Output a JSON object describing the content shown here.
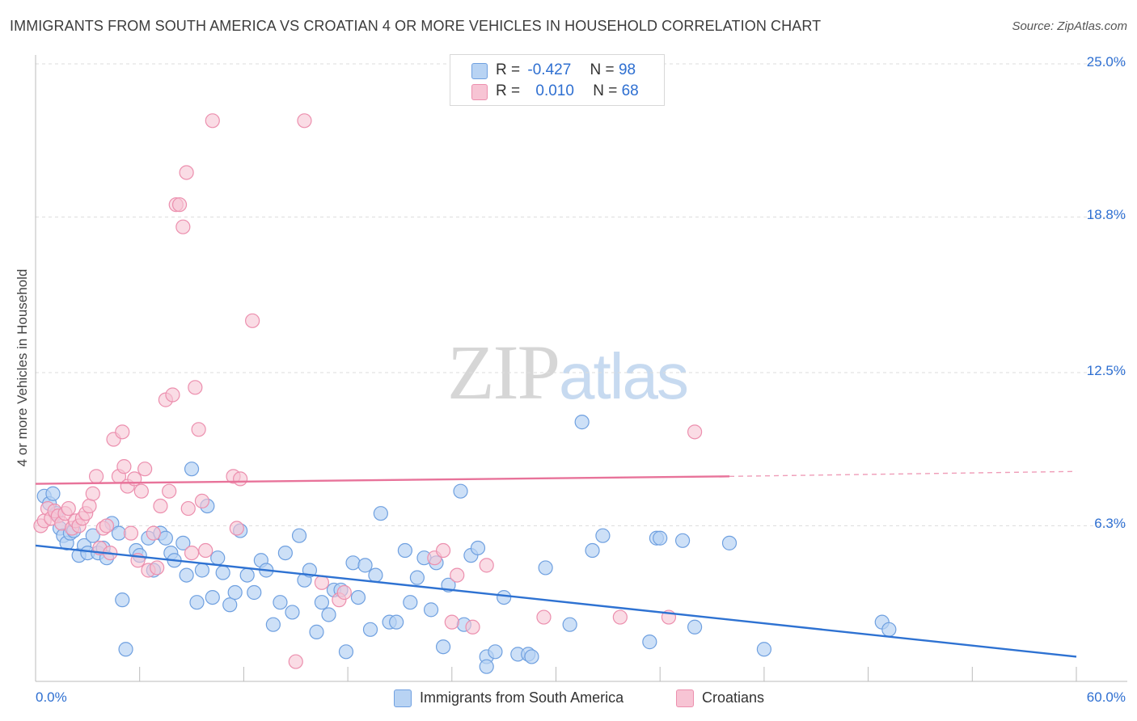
{
  "header": {
    "title": "IMMIGRANTS FROM SOUTH AMERICA VS CROATIAN 4 OR MORE VEHICLES IN HOUSEHOLD CORRELATION CHART",
    "source": "Source: ZipAtlas.com"
  },
  "legend_top": {
    "row1": {
      "r_label": "R =",
      "r_value": "-0.427",
      "n_label": "N =",
      "n_value": "98"
    },
    "row2": {
      "r_label": "R =",
      "r_value": "0.010",
      "n_label": "N =",
      "n_value": "68"
    }
  },
  "legend_bottom": {
    "blue": "Immigrants from South America",
    "pink": "Croatians"
  },
  "watermark": {
    "zip": "ZIP",
    "atlas": "atlas"
  },
  "colors": {
    "blue_fill": "#b8d3f3",
    "blue_stroke": "#6fa0e0",
    "blue_line": "#2e72d2",
    "pink_fill": "#f7c4d4",
    "pink_stroke": "#ec8fae",
    "pink_line": "#e8739a",
    "axis_text": "#2e6fd1",
    "grid": "#dddddd"
  },
  "chart_data": {
    "type": "scatter",
    "title": "IMMIGRANTS FROM SOUTH AMERICA VS CROATIAN 4 OR MORE VEHICLES IN HOUSEHOLD CORRELATION CHART",
    "xlabel": "",
    "ylabel": "4 or more Vehicles in Household",
    "xlim": [
      0,
      60
    ],
    "ylim": [
      0,
      25
    ],
    "x_tick_labels": [
      "0.0%",
      "60.0%"
    ],
    "y_ticks": [
      6.3,
      12.5,
      18.8,
      25.0
    ],
    "y_tick_labels": [
      "6.3%",
      "12.5%",
      "18.8%",
      "25.0%"
    ],
    "grid": "horizontal dashed",
    "legend_placement": "bottom",
    "series": [
      {
        "name": "Immigrants from South America",
        "color": "#b8d3f3",
        "r": -0.427,
        "n": 98,
        "trend": {
          "x": [
            0,
            60
          ],
          "y": [
            5.5,
            1.0
          ]
        },
        "points": [
          [
            0.5,
            7.5
          ],
          [
            0.8,
            7.2
          ],
          [
            1.0,
            7.6
          ],
          [
            1.2,
            6.8
          ],
          [
            1.4,
            6.2
          ],
          [
            1.6,
            5.9
          ],
          [
            1.8,
            5.6
          ],
          [
            2.0,
            6.0
          ],
          [
            2.2,
            6.1
          ],
          [
            2.5,
            5.1
          ],
          [
            2.8,
            5.5
          ],
          [
            3.0,
            5.2
          ],
          [
            3.3,
            5.9
          ],
          [
            3.6,
            5.2
          ],
          [
            3.9,
            5.4
          ],
          [
            4.1,
            5.0
          ],
          [
            4.4,
            6.4
          ],
          [
            4.8,
            6.0
          ],
          [
            5.0,
            3.3
          ],
          [
            5.2,
            1.3
          ],
          [
            5.8,
            5.3
          ],
          [
            6.0,
            5.1
          ],
          [
            6.5,
            5.8
          ],
          [
            6.8,
            4.5
          ],
          [
            7.2,
            6.0
          ],
          [
            7.5,
            5.8
          ],
          [
            7.8,
            5.2
          ],
          [
            8.0,
            4.9
          ],
          [
            8.5,
            5.6
          ],
          [
            8.7,
            4.3
          ],
          [
            9.0,
            8.6
          ],
          [
            9.3,
            3.2
          ],
          [
            9.6,
            4.5
          ],
          [
            9.9,
            7.1
          ],
          [
            10.2,
            3.4
          ],
          [
            10.5,
            5.0
          ],
          [
            10.8,
            4.4
          ],
          [
            11.2,
            3.1
          ],
          [
            11.5,
            3.6
          ],
          [
            11.8,
            6.1
          ],
          [
            12.2,
            4.3
          ],
          [
            12.6,
            3.6
          ],
          [
            13.0,
            4.9
          ],
          [
            13.3,
            4.5
          ],
          [
            13.7,
            2.3
          ],
          [
            14.1,
            3.2
          ],
          [
            14.4,
            5.2
          ],
          [
            14.8,
            2.8
          ],
          [
            15.2,
            5.9
          ],
          [
            15.5,
            4.1
          ],
          [
            15.8,
            4.5
          ],
          [
            16.2,
            2.0
          ],
          [
            16.5,
            3.2
          ],
          [
            16.9,
            2.7
          ],
          [
            17.2,
            3.7
          ],
          [
            17.6,
            3.7
          ],
          [
            17.9,
            1.2
          ],
          [
            18.3,
            4.8
          ],
          [
            18.6,
            3.4
          ],
          [
            19.0,
            4.7
          ],
          [
            19.3,
            2.1
          ],
          [
            19.6,
            4.3
          ],
          [
            19.9,
            6.8
          ],
          [
            20.4,
            2.4
          ],
          [
            20.8,
            2.4
          ],
          [
            21.3,
            5.3
          ],
          [
            21.6,
            3.2
          ],
          [
            22.0,
            4.2
          ],
          [
            22.4,
            5.0
          ],
          [
            22.8,
            2.9
          ],
          [
            23.1,
            4.8
          ],
          [
            23.5,
            1.4
          ],
          [
            23.8,
            3.9
          ],
          [
            24.5,
            7.7
          ],
          [
            24.7,
            2.3
          ],
          [
            25.1,
            5.1
          ],
          [
            25.5,
            5.4
          ],
          [
            26.0,
            1.0
          ],
          [
            26.5,
            1.2
          ],
          [
            27.0,
            3.4
          ],
          [
            27.8,
            1.1
          ],
          [
            28.4,
            1.1
          ],
          [
            28.6,
            1.0
          ],
          [
            29.4,
            4.6
          ],
          [
            30.8,
            2.3
          ],
          [
            31.5,
            10.5
          ],
          [
            32.1,
            5.3
          ],
          [
            32.7,
            5.9
          ],
          [
            35.4,
            1.6
          ],
          [
            35.8,
            5.8
          ],
          [
            36.0,
            5.8
          ],
          [
            37.3,
            5.7
          ],
          [
            38.0,
            2.2
          ],
          [
            40.0,
            5.6
          ],
          [
            42.0,
            1.3
          ],
          [
            48.8,
            2.4
          ],
          [
            49.2,
            2.1
          ],
          [
            26.0,
            0.6
          ]
        ]
      },
      {
        "name": "Croatians",
        "color": "#f7c4d4",
        "r": 0.01,
        "n": 68,
        "trend": {
          "x": [
            0,
            40
          ],
          "y": [
            8.0,
            8.3
          ],
          "dashed_to": {
            "x": 60,
            "y": 8.5
          }
        },
        "points": [
          [
            0.3,
            6.3
          ],
          [
            0.5,
            6.5
          ],
          [
            0.7,
            7.0
          ],
          [
            0.9,
            6.6
          ],
          [
            1.1,
            6.9
          ],
          [
            1.3,
            6.7
          ],
          [
            1.5,
            6.4
          ],
          [
            1.7,
            6.8
          ],
          [
            1.9,
            7.0
          ],
          [
            2.1,
            6.2
          ],
          [
            2.3,
            6.5
          ],
          [
            2.5,
            6.3
          ],
          [
            2.7,
            6.6
          ],
          [
            2.9,
            6.8
          ],
          [
            3.1,
            7.1
          ],
          [
            3.3,
            7.6
          ],
          [
            3.5,
            8.3
          ],
          [
            3.7,
            5.4
          ],
          [
            3.9,
            6.2
          ],
          [
            4.1,
            6.3
          ],
          [
            4.3,
            5.2
          ],
          [
            4.5,
            9.8
          ],
          [
            4.8,
            8.3
          ],
          [
            5.0,
            10.1
          ],
          [
            5.1,
            8.7
          ],
          [
            5.3,
            7.9
          ],
          [
            5.5,
            6.0
          ],
          [
            5.7,
            8.2
          ],
          [
            5.9,
            4.9
          ],
          [
            6.1,
            7.7
          ],
          [
            6.3,
            8.6
          ],
          [
            6.5,
            4.5
          ],
          [
            6.8,
            6.0
          ],
          [
            7.0,
            4.6
          ],
          [
            7.2,
            7.1
          ],
          [
            7.5,
            11.4
          ],
          [
            7.7,
            7.7
          ],
          [
            7.9,
            11.6
          ],
          [
            8.1,
            19.3
          ],
          [
            8.3,
            19.3
          ],
          [
            8.5,
            18.4
          ],
          [
            8.7,
            20.6
          ],
          [
            8.8,
            7.0
          ],
          [
            9.0,
            5.2
          ],
          [
            9.2,
            11.9
          ],
          [
            9.4,
            10.2
          ],
          [
            9.6,
            7.3
          ],
          [
            9.8,
            5.3
          ],
          [
            10.2,
            22.7
          ],
          [
            11.4,
            8.3
          ],
          [
            11.6,
            6.2
          ],
          [
            11.8,
            8.2
          ],
          [
            12.5,
            14.6
          ],
          [
            15.0,
            0.8
          ],
          [
            15.5,
            22.7
          ],
          [
            16.5,
            4.0
          ],
          [
            17.5,
            3.3
          ],
          [
            17.8,
            3.6
          ],
          [
            23.0,
            5.0
          ],
          [
            23.5,
            5.3
          ],
          [
            24.0,
            2.4
          ],
          [
            24.3,
            4.3
          ],
          [
            25.2,
            2.2
          ],
          [
            26.0,
            4.7
          ],
          [
            29.3,
            2.6
          ],
          [
            33.7,
            2.6
          ],
          [
            38.0,
            10.1
          ],
          [
            36.5,
            2.6
          ]
        ]
      }
    ]
  }
}
